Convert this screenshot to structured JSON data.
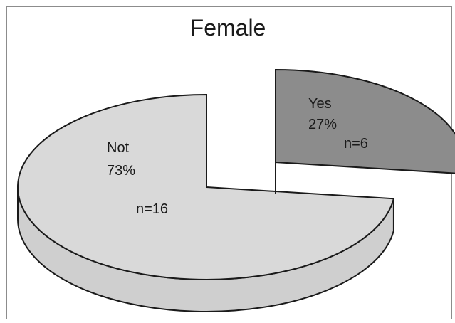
{
  "chart_data": {
    "type": "pie",
    "title": "Female",
    "style": "3d-exploded",
    "categories": [
      "Yes",
      "Not"
    ],
    "values": [
      27,
      73
    ],
    "counts": [
      6,
      16
    ],
    "percent_labels": [
      "27%",
      "73%"
    ],
    "count_labels": [
      "n=6",
      "n=16"
    ],
    "colors": {
      "yes_top": "#8c8c8c",
      "yes_side": "#7a7a7a",
      "not_top": "#d9d9d9",
      "not_side": "#cfcfcf",
      "edge": "#1a1a1a"
    },
    "legend": "none",
    "exploded_slice": "Yes"
  }
}
